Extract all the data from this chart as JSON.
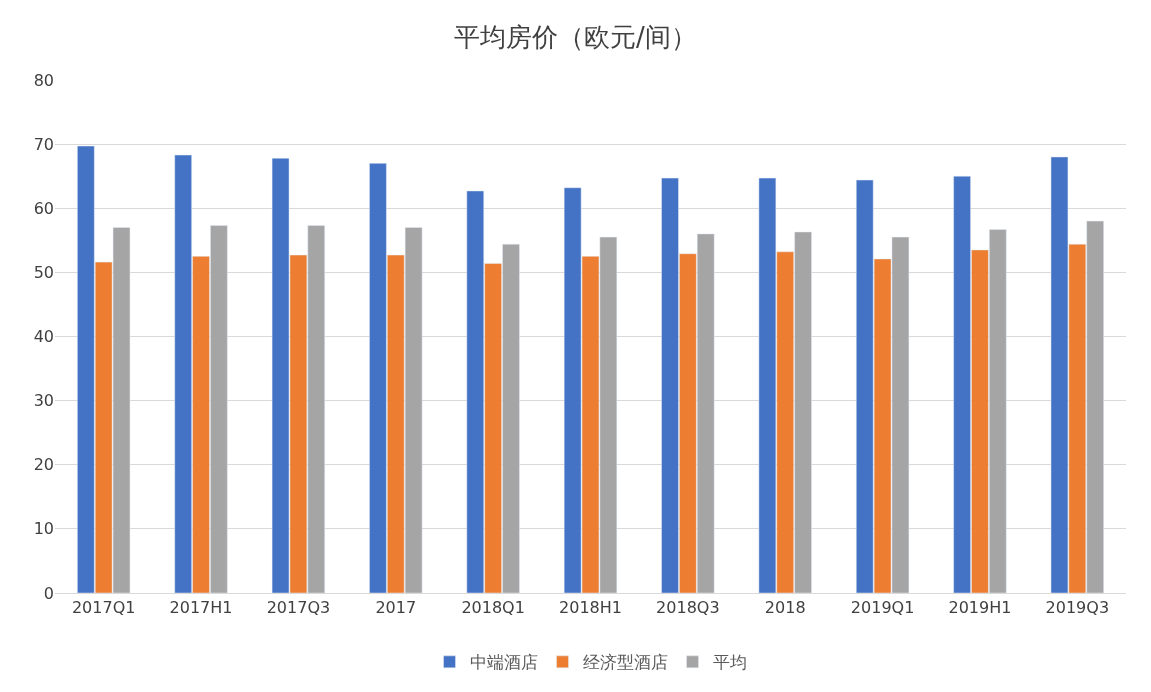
{
  "chart_data": {
    "type": "bar",
    "title": "平均房价（欧元/间）",
    "categories": [
      "2017Q1",
      "2017H1",
      "2017Q3",
      "2017",
      "2018Q1",
      "2018H1",
      "2018Q3",
      "2018",
      "2019Q1",
      "2019H1",
      "2019Q3"
    ],
    "series": [
      {
        "name": "中端酒店",
        "color": "#4472c4",
        "values": [
          69.7,
          68.3,
          67.8,
          67.0,
          62.7,
          63.2,
          64.7,
          64.7,
          64.4,
          65.0,
          68.0
        ]
      },
      {
        "name": "经济型酒店",
        "color": "#ed7d31",
        "values": [
          51.6,
          52.5,
          52.7,
          52.7,
          51.4,
          52.5,
          52.9,
          53.2,
          52.1,
          53.5,
          54.4
        ]
      },
      {
        "name": "平均",
        "color": "#a5a5a5",
        "values": [
          57.0,
          57.3,
          57.3,
          57.0,
          54.4,
          55.5,
          56.0,
          56.3,
          55.5,
          56.7,
          58.0
        ]
      }
    ],
    "ylim": [
      0,
      80
    ],
    "yticks": [
      0,
      10,
      20,
      30,
      40,
      50,
      60,
      70,
      80
    ],
    "grid": "y",
    "legend": "bottom"
  }
}
